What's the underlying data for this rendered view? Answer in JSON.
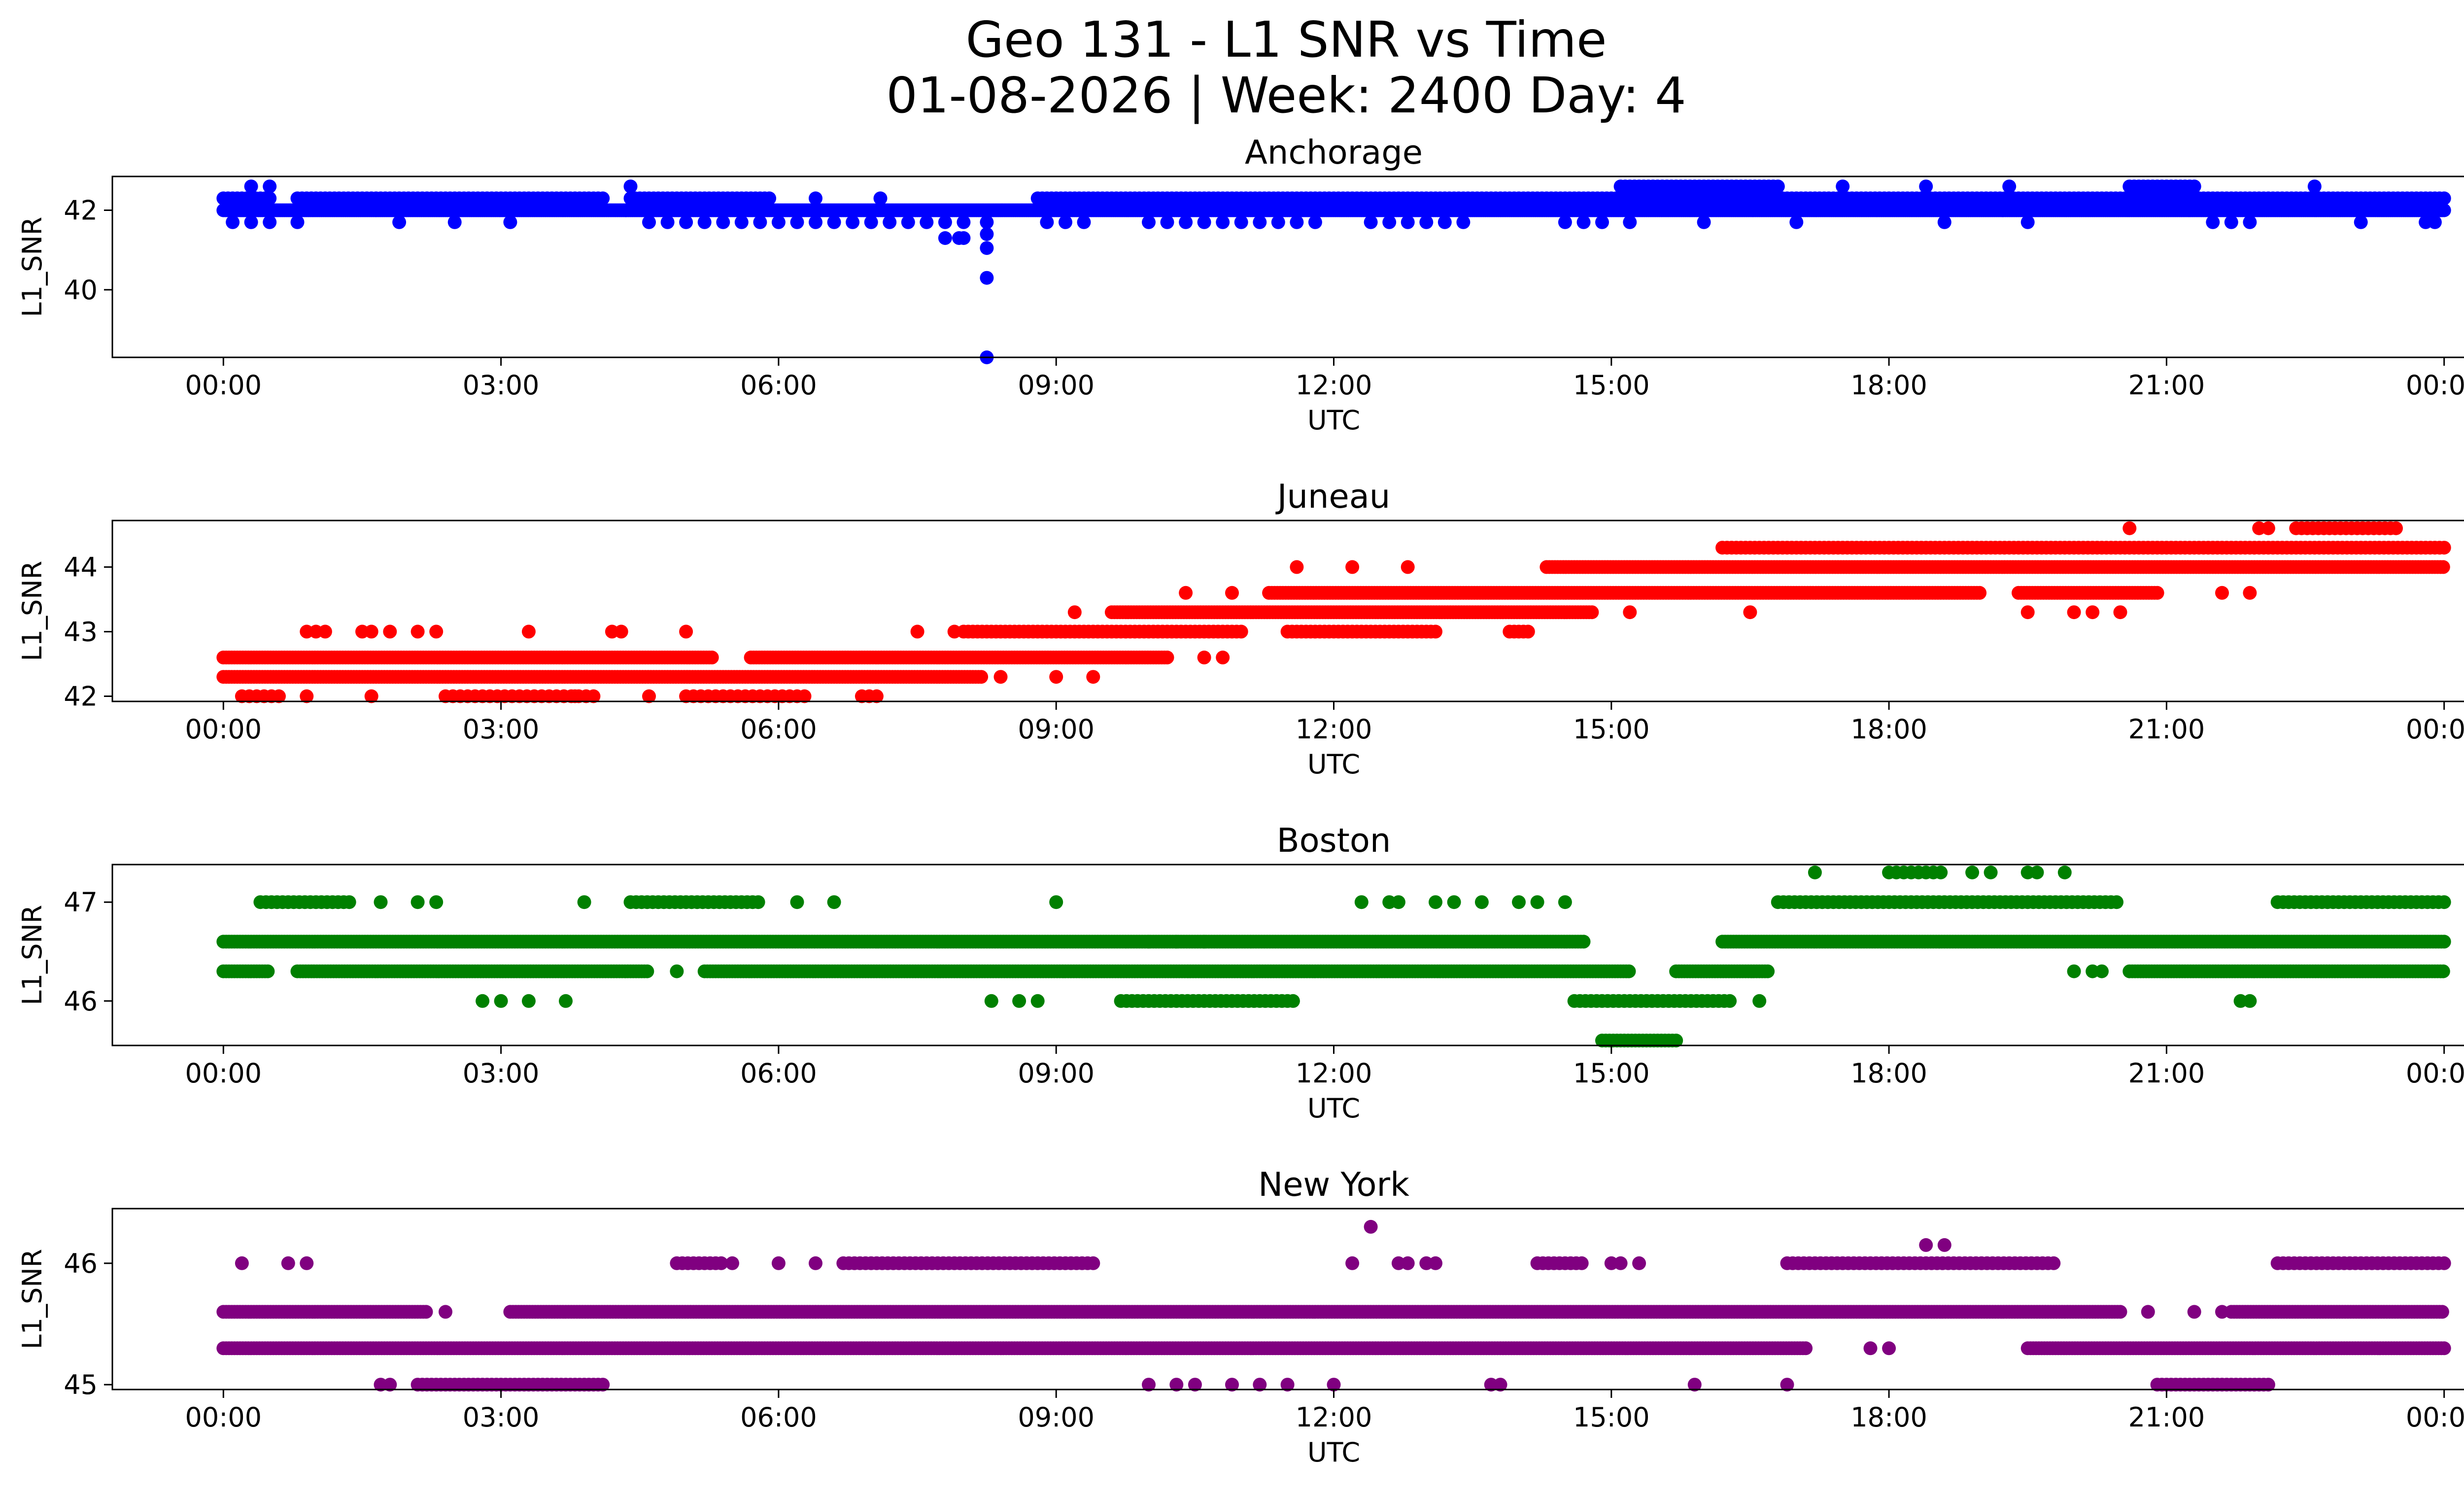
{
  "figure": {
    "title_line1": "Geo 131 - L1 SNR vs Time",
    "title_line2": "01-08-2026 | Week: 2400 Day: 4"
  },
  "chart_data": [
    {
      "type": "scatter",
      "title": "Anchorage",
      "xlabel": "UTC",
      "ylabel": "L1_SNR",
      "color": "#0000ff",
      "xlim_hours": [
        -1.2,
        25.2
      ],
      "ylim": [
        38.3,
        42.85
      ],
      "xticks_hours": [
        0,
        3,
        6,
        9,
        12,
        15,
        18,
        21,
        24
      ],
      "xtick_labels": [
        "00:00",
        "03:00",
        "06:00",
        "09:00",
        "12:00",
        "15:00",
        "18:00",
        "21:00",
        "00:00"
      ],
      "yticks": [
        40,
        42
      ],
      "ytick_labels": [
        "40",
        "42"
      ],
      "levels": [
        {
          "y": 42.0,
          "segments": [
            [
              0.0,
              24.0
            ]
          ],
          "step": 0.02
        },
        {
          "y": 42.3,
          "segments": [
            [
              0.0,
              0.5
            ],
            [
              0.8,
              4.1
            ],
            [
              4.4,
              5.9
            ],
            [
              8.8,
              24.0
            ]
          ],
          "step": 0.05
        },
        {
          "y": 41.7,
          "segments": [
            [
              0.1,
              0.6
            ],
            [
              4.6,
              8.0
            ],
            [
              8.9,
              9.4
            ],
            [
              10.0,
              11.8
            ],
            [
              12.4,
              13.5
            ],
            [
              14.5,
              14.9
            ],
            [
              21.5,
              21.9
            ]
          ],
          "step": 0.2
        },
        {
          "y": 42.6,
          "segments": [
            [
              15.1,
              16.8
            ],
            [
              20.6,
              21.3
            ]
          ],
          "step": 0.05
        }
      ],
      "points": [
        [
          0.3,
          42.6
        ],
        [
          0.5,
          42.6
        ],
        [
          4.4,
          42.6
        ],
        [
          6.4,
          42.3
        ],
        [
          7.1,
          42.3
        ],
        [
          19.3,
          42.6
        ],
        [
          22.6,
          42.6
        ],
        [
          0.8,
          41.7
        ],
        [
          1.9,
          41.7
        ],
        [
          2.5,
          41.7
        ],
        [
          3.1,
          41.7
        ],
        [
          16.0,
          41.7
        ],
        [
          17.0,
          41.7
        ],
        [
          18.6,
          41.7
        ],
        [
          19.5,
          41.7
        ],
        [
          23.1,
          41.7
        ],
        [
          23.8,
          41.7
        ],
        [
          23.9,
          41.7
        ],
        [
          15.2,
          41.7
        ],
        [
          17.5,
          42.6
        ],
        [
          18.4,
          42.6
        ],
        [
          7.8,
          41.3
        ],
        [
          7.95,
          41.3
        ],
        [
          8.0,
          41.3
        ],
        [
          8.25,
          41.7
        ],
        [
          8.25,
          41.4
        ],
        [
          8.25,
          41.05
        ],
        [
          8.25,
          40.3
        ],
        [
          8.25,
          38.3
        ]
      ]
    },
    {
      "type": "scatter",
      "title": "Juneau",
      "xlabel": "UTC",
      "ylabel": "L1_SNR",
      "color": "#ff0000",
      "xlim_hours": [
        -1.2,
        25.2
      ],
      "ylim": [
        41.92,
        44.72
      ],
      "xticks_hours": [
        0,
        3,
        6,
        9,
        12,
        15,
        18,
        21,
        24
      ],
      "xtick_labels": [
        "00:00",
        "03:00",
        "06:00",
        "09:00",
        "12:00",
        "15:00",
        "18:00",
        "21:00",
        "00:00"
      ],
      "yticks": [
        42,
        43,
        44
      ],
      "ytick_labels": [
        "42",
        "43",
        "44"
      ],
      "levels": [
        {
          "y": 42.3,
          "segments": [
            [
              0.0,
              8.2
            ]
          ],
          "step": 0.03
        },
        {
          "y": 42.6,
          "segments": [
            [
              0.0,
              5.3
            ],
            [
              5.7,
              10.2
            ]
          ],
          "step": 0.03
        },
        {
          "y": 42.0,
          "segments": [
            [
              0.2,
              0.6
            ],
            [
              2.4,
              4.0
            ],
            [
              5.0,
              6.3
            ],
            [
              6.9,
              7.1
            ]
          ],
          "step": 0.08
        },
        {
          "y": 43.0,
          "segments": [
            [
              8.0,
              11.0
            ],
            [
              11.5,
              13.1
            ],
            [
              13.9,
              14.1
            ]
          ],
          "step": 0.05
        },
        {
          "y": 43.3,
          "segments": [
            [
              9.6,
              14.8
            ]
          ],
          "step": 0.03
        },
        {
          "y": 43.6,
          "segments": [
            [
              11.3,
              19.0
            ],
            [
              19.4,
              20.9
            ]
          ],
          "step": 0.03
        },
        {
          "y": 44.0,
          "segments": [
            [
              14.3,
              24.0
            ]
          ],
          "step": 0.03
        },
        {
          "y": 44.3,
          "segments": [
            [
              16.2,
              24.0
            ]
          ],
          "step": 0.05
        },
        {
          "y": 44.6,
          "segments": [
            [
              22.4,
              23.5
            ]
          ],
          "step": 0.06
        }
      ],
      "points": [
        [
          0.9,
          43.0
        ],
        [
          1.0,
          43.0
        ],
        [
          1.1,
          43.0
        ],
        [
          1.5,
          43.0
        ],
        [
          1.6,
          43.0
        ],
        [
          1.8,
          43.0
        ],
        [
          2.1,
          43.0
        ],
        [
          2.3,
          43.0
        ],
        [
          3.3,
          43.0
        ],
        [
          4.2,
          43.0
        ],
        [
          4.3,
          43.0
        ],
        [
          5.0,
          43.0
        ],
        [
          7.5,
          43.0
        ],
        [
          7.9,
          43.0
        ],
        [
          1.6,
          42.0
        ],
        [
          0.9,
          42.0
        ],
        [
          3.8,
          42.0
        ],
        [
          4.6,
          42.0
        ],
        [
          9.2,
          43.3
        ],
        [
          8.4,
          42.3
        ],
        [
          9.0,
          42.3
        ],
        [
          9.4,
          42.3
        ],
        [
          10.4,
          43.6
        ],
        [
          10.9,
          43.6
        ],
        [
          11.6,
          44.0
        ],
        [
          12.2,
          44.0
        ],
        [
          12.8,
          44.0
        ],
        [
          10.6,
          42.6
        ],
        [
          10.8,
          42.6
        ],
        [
          15.2,
          43.3
        ],
        [
          16.5,
          43.3
        ],
        [
          19.5,
          43.3
        ],
        [
          20.0,
          43.3
        ],
        [
          20.2,
          43.3
        ],
        [
          20.5,
          43.3
        ],
        [
          20.6,
          44.6
        ],
        [
          21.6,
          43.6
        ],
        [
          21.9,
          43.6
        ],
        [
          22.0,
          44.6
        ],
        [
          22.1,
          44.6
        ]
      ]
    },
    {
      "type": "scatter",
      "title": "Boston",
      "xlabel": "UTC",
      "ylabel": "L1_SNR",
      "color": "#008000",
      "xlim_hours": [
        -1.2,
        25.2
      ],
      "ylim": [
        45.55,
        47.38
      ],
      "xticks_hours": [
        0,
        3,
        6,
        9,
        12,
        15,
        18,
        21,
        24
      ],
      "xtick_labels": [
        "00:00",
        "03:00",
        "06:00",
        "09:00",
        "12:00",
        "15:00",
        "18:00",
        "21:00",
        "00:00"
      ],
      "yticks": [
        46,
        47
      ],
      "ytick_labels": [
        "46",
        "47"
      ],
      "levels": [
        {
          "y": 46.6,
          "segments": [
            [
              0.0,
              14.7
            ],
            [
              16.2,
              24.0
            ]
          ],
          "step": 0.03
        },
        {
          "y": 46.3,
          "segments": [
            [
              0.0,
              0.5
            ],
            [
              0.8,
              4.6
            ],
            [
              5.2,
              15.2
            ],
            [
              15.7,
              16.7
            ],
            [
              20.6,
              24.0
            ]
          ],
          "step": 0.03
        },
        {
          "y": 47.0,
          "segments": [
            [
              0.4,
              1.4
            ],
            [
              4.4,
              5.8
            ],
            [
              16.8,
              20.5
            ],
            [
              22.2,
              24.0
            ]
          ],
          "step": 0.06
        },
        {
          "y": 46.0,
          "segments": [
            [
              9.7,
              11.6
            ],
            [
              14.6,
              16.3
            ]
          ],
          "step": 0.06
        },
        {
          "y": 45.6,
          "segments": [
            [
              14.9,
              15.7
            ]
          ],
          "step": 0.04
        },
        {
          "y": 47.3,
          "segments": [
            [
              18.0,
              18.6
            ]
          ],
          "step": 0.08
        }
      ],
      "points": [
        [
          1.7,
          47.0
        ],
        [
          2.1,
          47.0
        ],
        [
          2.3,
          47.0
        ],
        [
          3.9,
          47.0
        ],
        [
          6.2,
          47.0
        ],
        [
          6.6,
          47.0
        ],
        [
          9.0,
          47.0
        ],
        [
          12.3,
          47.0
        ],
        [
          12.6,
          47.0
        ],
        [
          12.7,
          47.0
        ],
        [
          13.1,
          47.0
        ],
        [
          13.3,
          47.0
        ],
        [
          13.6,
          47.0
        ],
        [
          14.0,
          47.0
        ],
        [
          14.2,
          47.0
        ],
        [
          14.5,
          47.0
        ],
        [
          2.8,
          46.0
        ],
        [
          3.0,
          46.0
        ],
        [
          3.3,
          46.0
        ],
        [
          3.7,
          46.0
        ],
        [
          8.3,
          46.0
        ],
        [
          8.6,
          46.0
        ],
        [
          8.8,
          46.0
        ],
        [
          16.6,
          46.0
        ],
        [
          21.8,
          46.0
        ],
        [
          21.9,
          46.0
        ],
        [
          17.2,
          47.3
        ],
        [
          18.9,
          47.3
        ],
        [
          19.1,
          47.3
        ],
        [
          19.5,
          47.3
        ],
        [
          19.6,
          47.3
        ],
        [
          19.9,
          47.3
        ],
        [
          20.0,
          46.3
        ],
        [
          20.2,
          46.3
        ],
        [
          20.3,
          46.3
        ],
        [
          4.9,
          46.3
        ],
        [
          10.6,
          46.6
        ],
        [
          10.3,
          46.6
        ],
        [
          10.0,
          46.6
        ]
      ]
    },
    {
      "type": "scatter",
      "title": "New York",
      "xlabel": "UTC",
      "ylabel": "L1_SNR",
      "color": "#800080",
      "xlim_hours": [
        -1.2,
        25.2
      ],
      "ylim": [
        44.96,
        46.45
      ],
      "xticks_hours": [
        0,
        3,
        6,
        9,
        12,
        15,
        18,
        21,
        24
      ],
      "xtick_labels": [
        "00:00",
        "03:00",
        "06:00",
        "09:00",
        "12:00",
        "15:00",
        "18:00",
        "21:00",
        "00:00"
      ],
      "yticks": [
        45,
        46
      ],
      "ytick_labels": [
        "45",
        "46"
      ],
      "levels": [
        {
          "y": 45.3,
          "segments": [
            [
              0.0,
              17.1
            ],
            [
              19.5,
              24.0
            ]
          ],
          "step": 0.03
        },
        {
          "y": 45.6,
          "segments": [
            [
              0.0,
              2.2
            ],
            [
              3.1,
              20.5
            ],
            [
              21.7,
              24.0
            ]
          ],
          "step": 0.03
        },
        {
          "y": 45.0,
          "segments": [
            [
              2.1,
              4.1
            ],
            [
              20.9,
              22.1
            ]
          ],
          "step": 0.05
        },
        {
          "y": 46.0,
          "segments": [
            [
              4.9,
              5.4
            ],
            [
              6.7,
              9.4
            ],
            [
              14.2,
              14.7
            ],
            [
              16.9,
              19.8
            ],
            [
              22.2,
              24.0
            ]
          ],
          "step": 0.06
        }
      ],
      "points": [
        [
          0.2,
          46.0
        ],
        [
          0.7,
          46.0
        ],
        [
          0.9,
          46.0
        ],
        [
          5.5,
          46.0
        ],
        [
          6.0,
          46.0
        ],
        [
          6.4,
          46.0
        ],
        [
          12.2,
          46.0
        ],
        [
          12.7,
          46.0
        ],
        [
          12.8,
          46.0
        ],
        [
          13.0,
          46.0
        ],
        [
          13.1,
          46.0
        ],
        [
          15.0,
          46.0
        ],
        [
          15.1,
          46.0
        ],
        [
          15.3,
          46.0
        ],
        [
          12.4,
          46.3
        ],
        [
          18.4,
          46.15
        ],
        [
          18.6,
          46.15
        ],
        [
          1.7,
          45.0
        ],
        [
          1.8,
          45.0
        ],
        [
          10.0,
          45.0
        ],
        [
          10.3,
          45.0
        ],
        [
          10.5,
          45.0
        ],
        [
          10.9,
          45.0
        ],
        [
          11.2,
          45.0
        ],
        [
          11.5,
          45.0
        ],
        [
          12.0,
          45.0
        ],
        [
          13.7,
          45.0
        ],
        [
          13.8,
          45.0
        ],
        [
          15.9,
          45.0
        ],
        [
          16.9,
          45.0
        ],
        [
          17.8,
          45.3
        ],
        [
          18.0,
          45.3
        ],
        [
          2.4,
          45.6
        ],
        [
          20.8,
          45.6
        ],
        [
          21.3,
          45.6
        ],
        [
          21.6,
          45.6
        ]
      ]
    }
  ]
}
